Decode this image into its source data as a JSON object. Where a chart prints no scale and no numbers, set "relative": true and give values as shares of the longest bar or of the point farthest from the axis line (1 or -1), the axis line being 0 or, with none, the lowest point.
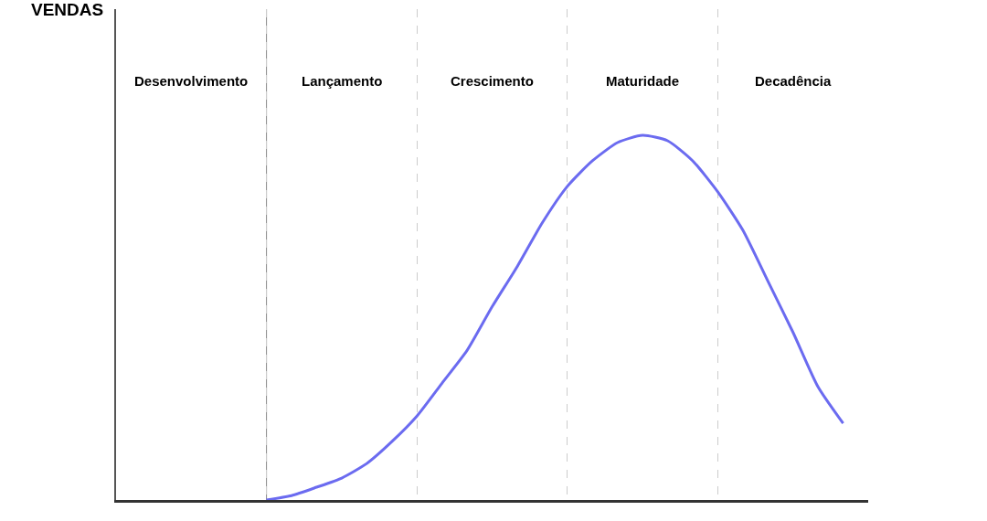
{
  "chart_data": {
    "type": "line",
    "relative": true,
    "categories": [
      null,
      null,
      null,
      null,
      null,
      null,
      null,
      null,
      null,
      null,
      null,
      null,
      null,
      null,
      null,
      null,
      null,
      null,
      null,
      null,
      null,
      null,
      null,
      null,
      null,
      null,
      null,
      null,
      null,
      null
    ],
    "grid": "x",
    "marker": "none",
    "line_style": "solid",
    "series": [
      {
        "color": "#6b6bf0",
        "values": [
          null,
          null,
          null,
          null,
          null,
          null,
          0,
          0.012,
          0.035,
          0.06,
          0.1,
          0.16,
          0.23,
          0.32,
          0.41,
          0.53,
          0.64,
          0.76,
          0.86,
          0.93,
          0.98,
          1.0,
          0.985,
          0.93,
          0.845,
          0.74,
          0.6,
          0.46,
          0.31,
          0.21
        ]
      }
    ],
    "ref_lines": [
      {
        "axis": "x",
        "color": "#888888",
        "line_style": "solid"
      }
    ],
    "annotations": [
      "Desenvolvimento",
      "Lançamento",
      "Crescimento",
      "Maturidade",
      "Decadência",
      "VENDAS"
    ]
  }
}
